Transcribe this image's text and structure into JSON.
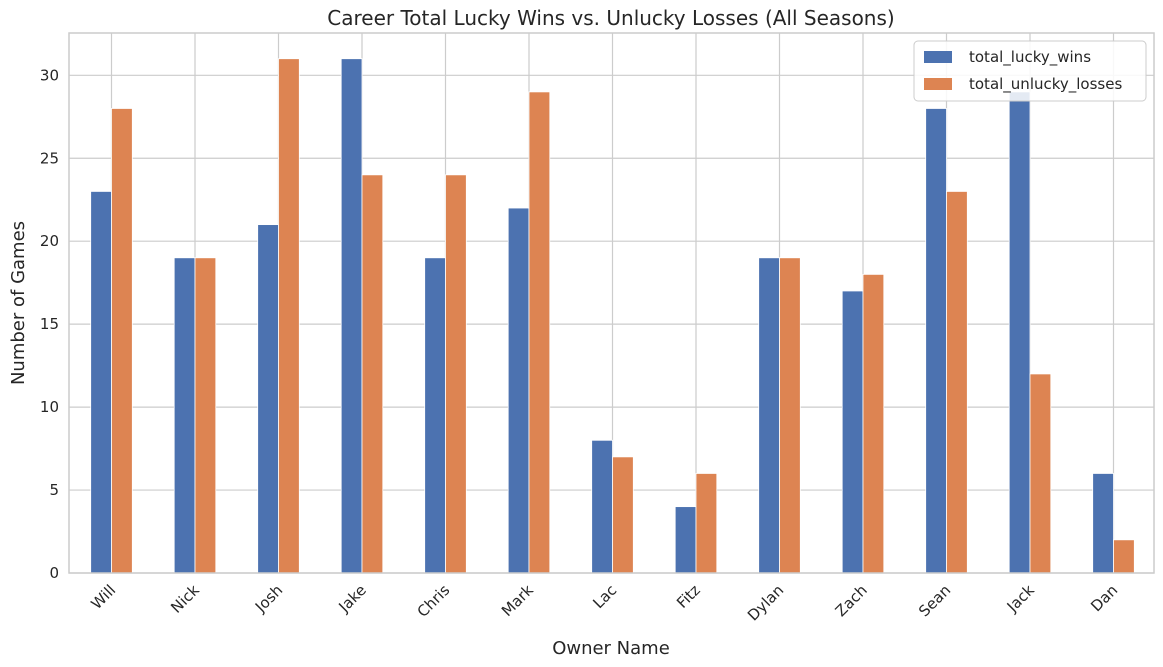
{
  "chart_data": {
    "type": "bar",
    "title": "Career Total Lucky Wins vs. Unlucky Losses (All Seasons)",
    "xlabel": "Owner Name",
    "ylabel": "Number of Games",
    "categories": [
      "Will",
      "Nick",
      "Josh",
      "Jake",
      "Chris",
      "Mark",
      "Lac",
      "Fitz",
      "Dylan",
      "Zach",
      "Sean",
      "Jack",
      "Dan"
    ],
    "series": [
      {
        "name": "total_lucky_wins",
        "color": "#4c72b0",
        "values": [
          23,
          19,
          21,
          31,
          19,
          22,
          8,
          4,
          19,
          17,
          28,
          29,
          6
        ]
      },
      {
        "name": "total_unlucky_losses",
        "color": "#dd8452",
        "values": [
          28,
          19,
          31,
          24,
          24,
          29,
          7,
          6,
          19,
          18,
          23,
          12,
          2
        ]
      }
    ],
    "ylim": [
      0,
      32.55
    ],
    "yticks": [
      0,
      5,
      10,
      15,
      20,
      25,
      30
    ],
    "grid": true,
    "legend_position": "top-right",
    "tick_rotation_deg": 45
  }
}
